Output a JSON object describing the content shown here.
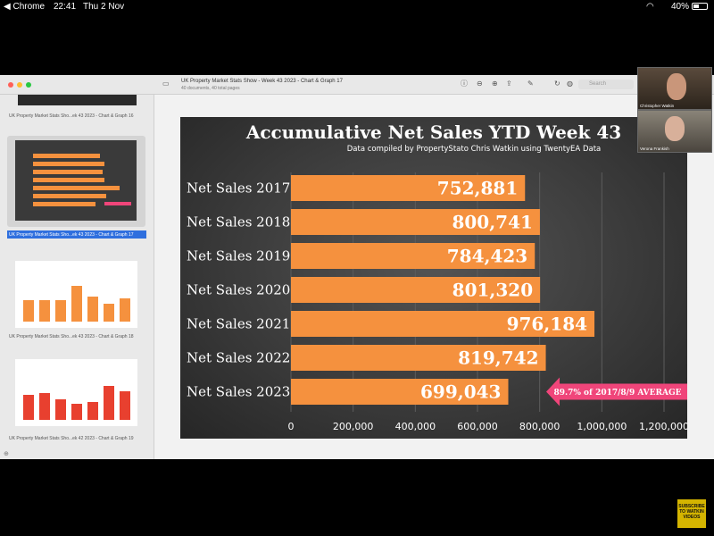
{
  "status_bar": {
    "app_back": "◀ Chrome",
    "time": "22:41",
    "date": "Thu 2 Nov",
    "battery": "40%"
  },
  "window": {
    "title": "UK Property Market Stats Show - Week 43 2023 - Chart & Graph 17",
    "subtitle": "40 documents, 40 total pages",
    "search_placeholder": "Search"
  },
  "sidebar": {
    "items": [
      {
        "label": "UK Property Market Stats Sho...ek 43 2023 - Chart & Graph 16"
      },
      {
        "label": "UK Property Market Stats Sho...ek 43 2023 - Chart & Graph 17"
      },
      {
        "label": "UK Property Market Stats Sho...ek 43 2023 - Chart & Graph 18"
      },
      {
        "label": "UK Property Market Stats Sho...ek 42 2023 - Chart & Graph 19"
      }
    ]
  },
  "participants": [
    {
      "name": "Christopher Watkin"
    },
    {
      "name": "Verona Frankish"
    }
  ],
  "subscribe": "SUBSCRIBE TO WATKIN VIDEOS",
  "chart_data": {
    "type": "bar",
    "orientation": "horizontal",
    "title": "Accumulative Net Sales YTD Week 43",
    "subtitle": "Data compiled by PropertyStato Chris Watkin using TwentyEA Data",
    "categories": [
      "Net Sales 2017",
      "Net Sales 2018",
      "Net Sales 2019",
      "Net Sales 2020",
      "Net Sales 2021",
      "Net Sales 2022",
      "Net Sales 2023"
    ],
    "values": [
      752881,
      800741,
      784423,
      801320,
      976184,
      819742,
      699043
    ],
    "value_labels": [
      "752,881",
      "800,741",
      "784,423",
      "801,320",
      "976,184",
      "819,742",
      "699,043"
    ],
    "xlim": [
      0,
      1200000
    ],
    "x_ticks": [
      0,
      200000,
      400000,
      600000,
      800000,
      1000000,
      1200000
    ],
    "x_tick_labels": [
      "0",
      "200,000",
      "400,000",
      "600,000",
      "800,000",
      "1,000,000",
      "1,200,000"
    ],
    "grid": true,
    "bar_color": "#f5913e",
    "annotation": {
      "text": "89.7% of 2017/8/9 AVERAGE",
      "target": "Net Sales 2023",
      "color": "#f0457a"
    }
  }
}
